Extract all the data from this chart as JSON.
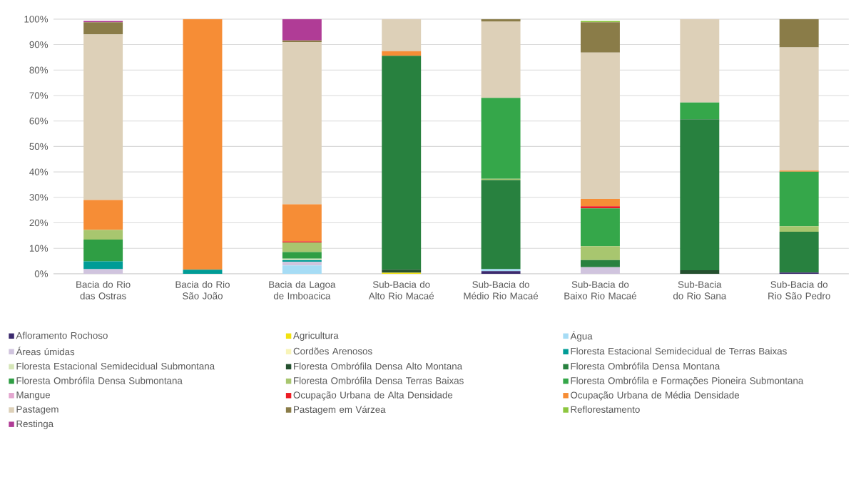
{
  "chart_data": {
    "type": "bar",
    "stacked": true,
    "grid": "y",
    "legend": "bottom",
    "categories": [
      "Bacia do Rio das Ostras",
      "Bacia do Rio São João",
      "Bacia da Lagoa de Imboacica",
      "Sub-Bacia do Alto Rio Macaé",
      "Sub-Bacia do Médio Rio Macaé",
      "Sub-Bacia do Baixo Rio Macaé",
      "Sub-Bacia do Rio Sana",
      "Sub-Bacia do Rio São Pedro"
    ],
    "ylim": [
      0,
      100
    ],
    "yticks": [
      {
        "value": 0,
        "label": "0%"
      },
      {
        "value": 10,
        "label": "10%"
      },
      {
        "value": 20,
        "label": "20%"
      },
      {
        "value": 30,
        "label": "30%"
      },
      {
        "value": 40,
        "label": "40%"
      },
      {
        "value": 50,
        "label": "50%"
      },
      {
        "value": 60,
        "label": "60%"
      },
      {
        "value": 70,
        "label": "70%"
      },
      {
        "value": 80,
        "label": "80%"
      },
      {
        "value": 90,
        "label": "90%"
      },
      {
        "value": 100,
        "label": "100%"
      }
    ],
    "series": [
      {
        "name": "Afloramento Rochoso",
        "color": "#3b2a6e",
        "values": [
          null,
          null,
          null,
          null,
          1.0,
          null,
          null,
          0.5
        ]
      },
      {
        "name": "Agricultura",
        "color": "#f2e20f",
        "values": [
          null,
          null,
          null,
          0.4,
          null,
          null,
          null,
          null
        ]
      },
      {
        "name": "Água",
        "color": "#a6dcf5",
        "values": [
          null,
          null,
          3.3,
          null,
          0.8,
          null,
          null,
          null
        ]
      },
      {
        "name": "Áreas úmidas",
        "color": "#d0c4de",
        "values": [
          1.8,
          null,
          1.4,
          null,
          null,
          2.6,
          null,
          null
        ]
      },
      {
        "name": "Cordões Arenosos",
        "color": "#f8f4b8",
        "values": [
          null,
          null,
          null,
          null,
          null,
          null,
          null,
          null
        ]
      },
      {
        "name": "Floresta Estacional Semidecidual de Terras  Baixas",
        "color": "#009c96",
        "values": [
          3.1,
          1.6,
          0.7,
          null,
          null,
          null,
          null,
          null
        ]
      },
      {
        "name": "Floresta Estacional Semidecidual Submontana",
        "color": "#d6e6b8",
        "values": [
          null,
          null,
          0.5,
          null,
          null,
          null,
          null,
          null
        ]
      },
      {
        "name": "Floresta Ombrófila Densa Alto Montana",
        "color": "#24502f",
        "values": [
          null,
          null,
          null,
          1.2,
          null,
          null,
          1.4,
          null
        ]
      },
      {
        "name": "Floresta Ombrófila Densa Montana",
        "color": "#28813f",
        "values": [
          null,
          null,
          null,
          84.0,
          35.0,
          2.8,
          59.3,
          16.0
        ]
      },
      {
        "name": "Floresta Ombrófila Densa Submontana",
        "color": "#2f9e44",
        "values": [
          8.5,
          null,
          2.6,
          null,
          null,
          null,
          null,
          null
        ]
      },
      {
        "name": "Floresta Ombrófila Densa Terras  Baixas",
        "color": "#a8c66f",
        "values": [
          3.8,
          null,
          3.8,
          null,
          0.5,
          5.4,
          null,
          2.2
        ]
      },
      {
        "name": "Floresta Ombrófila e Formações Pioneira Submontana",
        "color": "#35a74a",
        "values": [
          null,
          null,
          null,
          null,
          31.8,
          14.9,
          6.6,
          21.4
        ]
      },
      {
        "name": "Mangue",
        "color": "#e3a6cf",
        "values": [
          null,
          null,
          null,
          null,
          null,
          null,
          null,
          null
        ]
      },
      {
        "name": "Ocupação Urbana de Alta Densidade",
        "color": "#ed1c24",
        "values": [
          null,
          null,
          0.4,
          null,
          null,
          0.8,
          null,
          null
        ]
      },
      {
        "name": "Ocupação Urbana de Média Densidade",
        "color": "#f68d36",
        "values": [
          11.8,
          98.4,
          14.6,
          1.8,
          null,
          2.9,
          null,
          0.4
        ]
      },
      {
        "name": "Pastagem",
        "color": "#ddd0b8",
        "values": [
          65.0,
          null,
          63.7,
          12.6,
          30.0,
          57.5,
          32.7,
          48.4
        ]
      },
      {
        "name": "Pastagem em Várzea",
        "color": "#8a7c48",
        "values": [
          4.8,
          null,
          0.6,
          null,
          0.9,
          11.9,
          null,
          11.1
        ]
      },
      {
        "name": "Reflorestamento",
        "color": "#8dc63f",
        "values": [
          null,
          null,
          null,
          null,
          null,
          0.5,
          null,
          null
        ]
      },
      {
        "name": "Restinga",
        "color": "#b03c96",
        "values": [
          0.5,
          null,
          8.4,
          null,
          null,
          null,
          null,
          null
        ]
      }
    ]
  }
}
